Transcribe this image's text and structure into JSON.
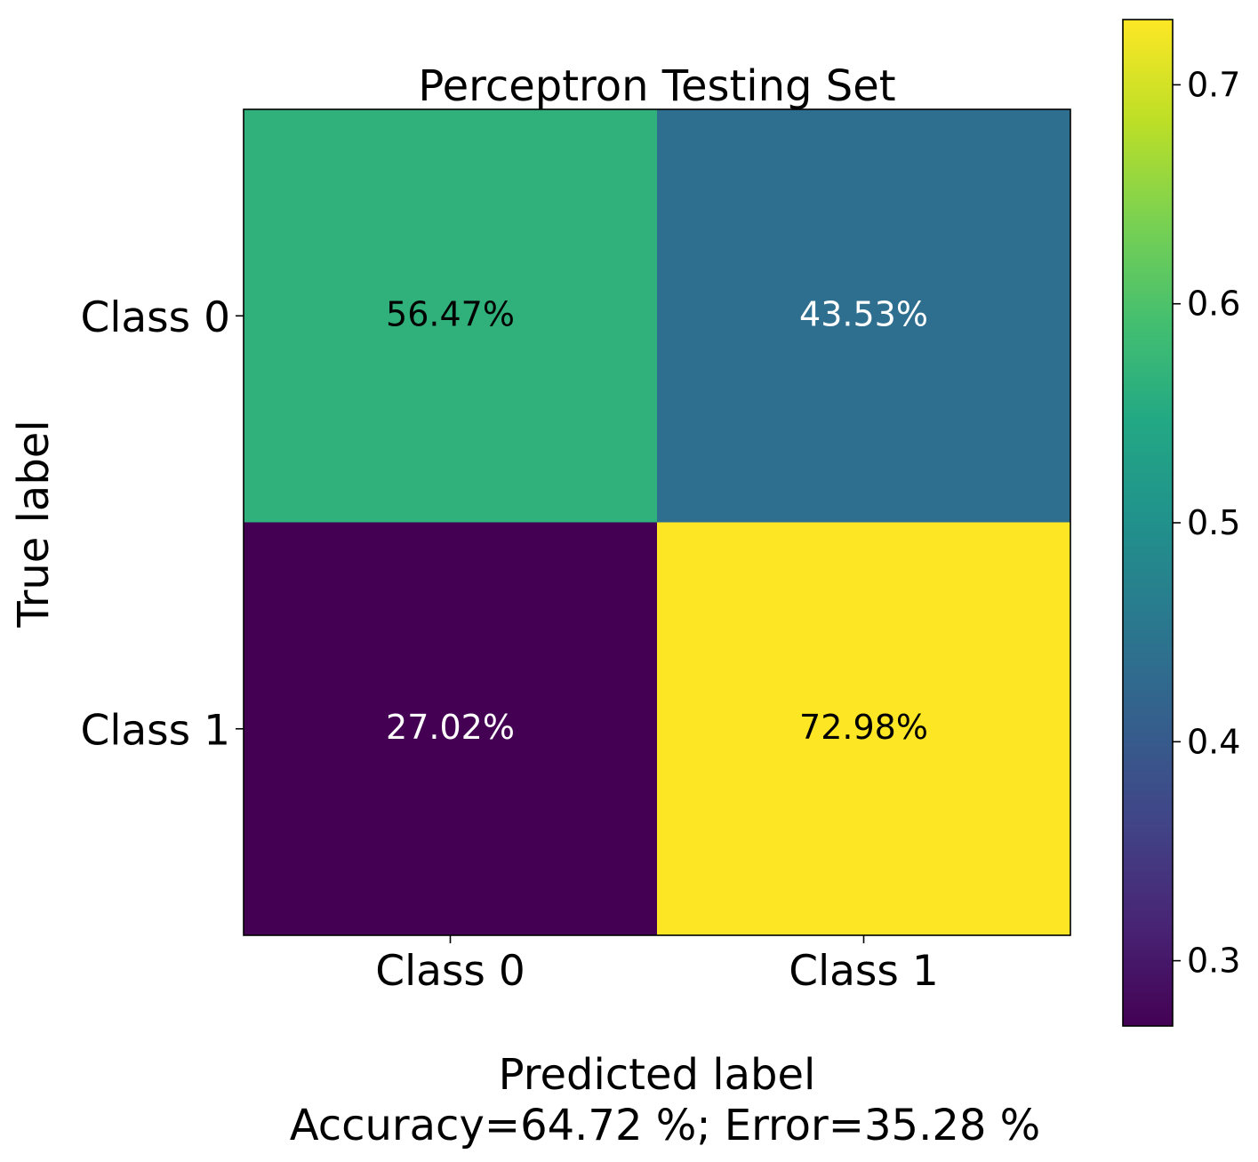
{
  "chart_data": {
    "type": "heatmap",
    "title": "Perceptron Testing Set",
    "xlabel": "Predicted label",
    "xlabel_sub": "Accuracy=64.72 %; Error=35.28 %",
    "ylabel": "True label",
    "x_categories": [
      "Class 0",
      "Class 1"
    ],
    "y_categories": [
      "Class 0",
      "Class 1"
    ],
    "values": [
      [
        0.5647,
        0.4353
      ],
      [
        0.2702,
        0.7298
      ]
    ],
    "cell_labels": [
      [
        "56.47%",
        "43.53%"
      ],
      [
        "27.02%",
        "72.98%"
      ]
    ],
    "colormap": "viridis",
    "colorbar": {
      "range": [
        0.2702,
        0.7298
      ],
      "ticks": [
        0.3,
        0.4,
        0.5,
        0.6,
        0.7
      ],
      "tick_labels": [
        "0.3",
        "0.4",
        "0.5",
        "0.6",
        "0.7"
      ],
      "placement": "right"
    }
  }
}
